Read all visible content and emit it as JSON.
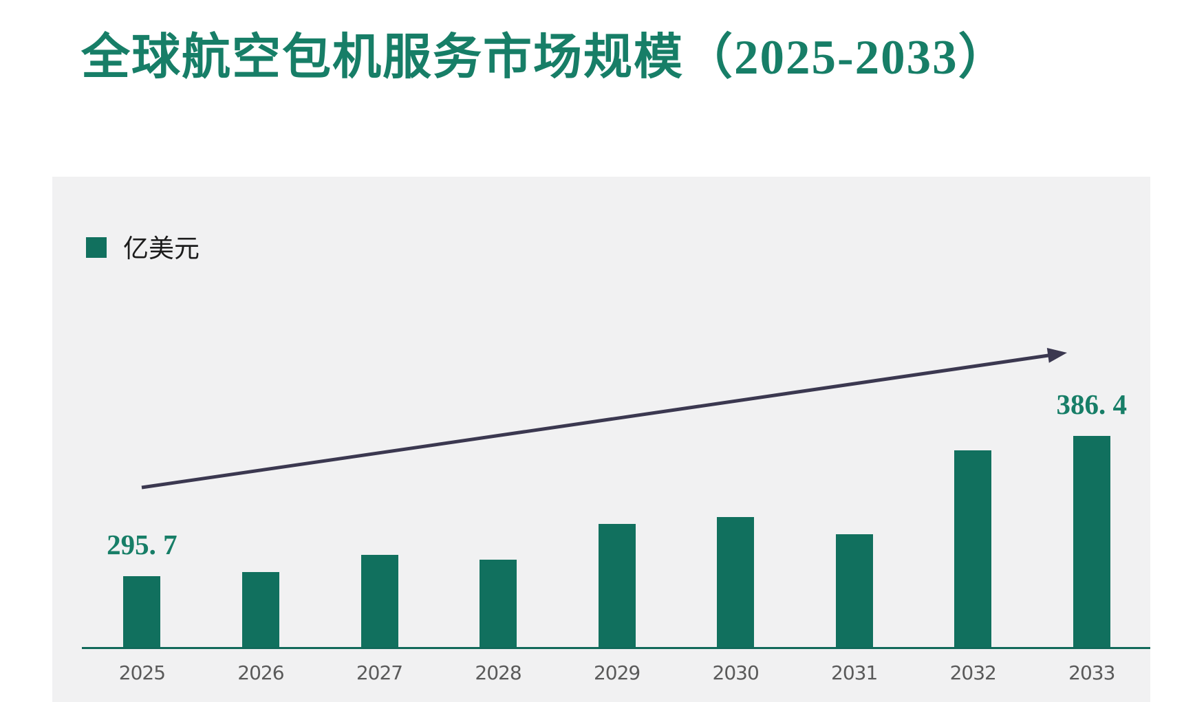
{
  "title": "全球航空包机服务市场规模（2025-2033）",
  "legend": {
    "label": "亿美元"
  },
  "colors": {
    "bar": "#11705E",
    "axis_line": "#12695A",
    "title_text": "#177E67",
    "value_label_text": "#177E67",
    "year_label_text": "#5A5A5A",
    "arrow": "#3B3850",
    "panel_background": "#F1F1F2",
    "page_background": "#FFFFFF"
  },
  "chart_data": {
    "type": "bar",
    "title": "全球航空包机服务市场规模（2025-2033）",
    "unit": "亿美元",
    "categories": [
      "2025",
      "2026",
      "2027",
      "2028",
      "2029",
      "2030",
      "2031",
      "2032",
      "2033"
    ],
    "values": [
      295.7,
      298.1,
      309.4,
      306.4,
      329.6,
      333.8,
      322.9,
      377.1,
      386.4
    ],
    "value_labels": [
      {
        "index": 0,
        "text": "295. 7",
        "value": 295.7
      },
      {
        "index": 8,
        "text": "386. 4",
        "value": 386.4
      }
    ],
    "xlabel": "",
    "ylabel": "",
    "y_axis_visible": false,
    "grid": false,
    "legend_position": "top-left",
    "annotations": [
      "upward-trend-arrow-from-2025-to-2033"
    ]
  }
}
